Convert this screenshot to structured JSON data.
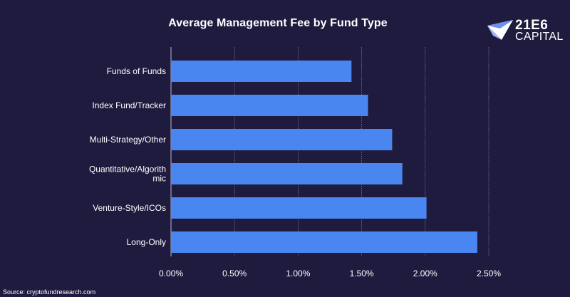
{
  "chart_data": {
    "type": "bar",
    "orientation": "horizontal",
    "title": "Average Management Fee by Fund Type",
    "categories": [
      "Funds of Funds",
      "Index Fund/Tracker",
      "Multi-Strategy/Other",
      "Quantitative/Algorithmic",
      "Venture-Style/ICOs",
      "Long-Only"
    ],
    "category_display": [
      [
        "Funds of Funds"
      ],
      [
        "Index Fund/Tracker"
      ],
      [
        "Multi-Strategy/Other"
      ],
      [
        "Quantitative/Algorith",
        "mic"
      ],
      [
        "Venture-Style/ICOs"
      ],
      [
        "Long-Only"
      ]
    ],
    "values": [
      1.42,
      1.55,
      1.74,
      1.82,
      2.01,
      2.41
    ],
    "xlim": [
      0,
      2.5
    ],
    "xticks": [
      0,
      0.5,
      1.0,
      1.5,
      2.0,
      2.5
    ],
    "xtick_labels": [
      "0.00%",
      "0.50%",
      "1.00%",
      "1.50%",
      "2.00%",
      "2.50%"
    ],
    "xlabel": "",
    "ylabel": "",
    "grid": true,
    "bar_color": "#4a86f0",
    "grid_color": "#8a88a8",
    "background": "#1e1b3f"
  },
  "logo": {
    "name": "21E6",
    "sub": "CAPITAL"
  },
  "source": "Source:  cryptofundresearch.com"
}
